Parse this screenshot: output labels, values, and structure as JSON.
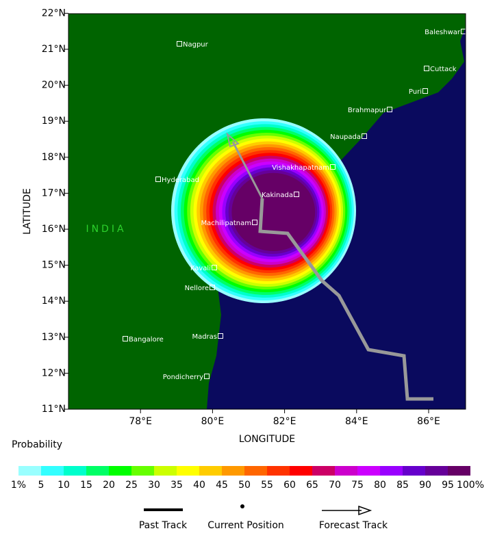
{
  "map": {
    "y_axis_label": "LATITUDE",
    "x_axis_label": "LONGITUDE",
    "lat_ticks": [
      "11°N",
      "12°N",
      "13°N",
      "14°N",
      "15°N",
      "16°N",
      "17°N",
      "18°N",
      "19°N",
      "20°N",
      "21°N",
      "22°N"
    ],
    "lon_ticks": [
      "78°E",
      "80°E",
      "82°E",
      "84°E",
      "86°E"
    ],
    "region_label": "INDIA",
    "cities": [
      "Nagpur",
      "Baleshwar",
      "Cuttack",
      "Puri",
      "Brahmapur",
      "Naupada",
      "Vishakhapatnam",
      "Hyderabad",
      "Kakinada",
      "Machilipatnam",
      "Kavali",
      "Nellore",
      "Bangalore",
      "Madras",
      "Pondicherry"
    ]
  },
  "colorbar": {
    "title": "Probability",
    "labels": [
      "1%",
      "5",
      "10",
      "15",
      "20",
      "25",
      "30",
      "35",
      "40",
      "45",
      "50",
      "55",
      "60",
      "65",
      "70",
      "75",
      "80",
      "85",
      "90",
      "95",
      "100%"
    ],
    "colors": [
      "#99ffff",
      "#33ffff",
      "#00ffcc",
      "#00ff66",
      "#00ff00",
      "#66ff00",
      "#ccff00",
      "#ffff00",
      "#ffcc00",
      "#ff9900",
      "#ff6600",
      "#ff3300",
      "#ff0000",
      "#cc0066",
      "#cc00cc",
      "#cc00ff",
      "#9900ff",
      "#6600cc",
      "#660099",
      "#660066"
    ]
  },
  "legend": [
    "Past Track",
    "Current Position",
    "Forecast Track"
  ]
}
